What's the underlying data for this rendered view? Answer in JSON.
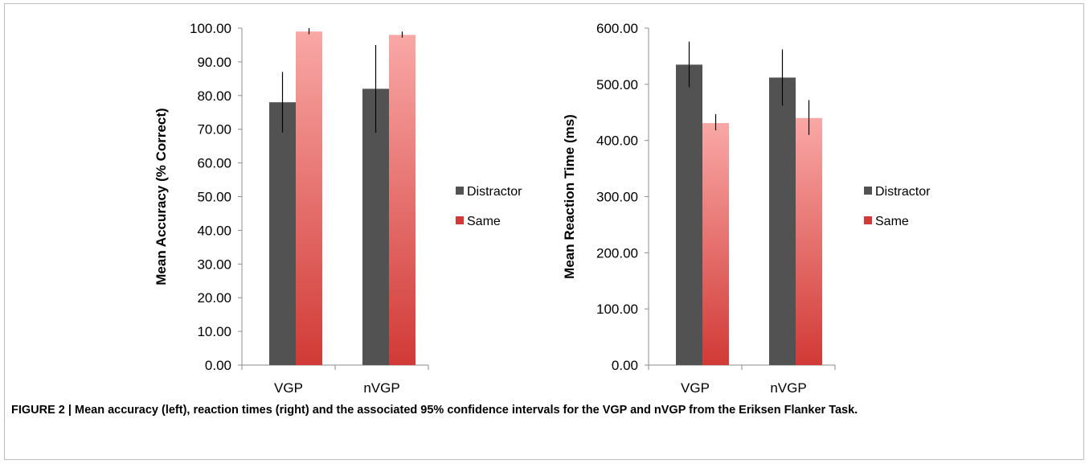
{
  "colors": {
    "distractor": "#525252",
    "same_top": "#f9a8a6",
    "same_bottom": "#d13a36",
    "error_bar": "#000000",
    "axis": "#8c8c8c"
  },
  "chart_data": [
    {
      "type": "bar",
      "categories": [
        "VGP",
        "nVGP"
      ],
      "ylabel": "Mean Accuracy (% Correct)",
      "ylim": [
        0,
        100
      ],
      "yticks": [
        "0.00",
        "10.00",
        "20.00",
        "30.00",
        "40.00",
        "50.00",
        "60.00",
        "70.00",
        "80.00",
        "90.00",
        "100.00"
      ],
      "legend_position": "right",
      "series": [
        {
          "name": "Distractor",
          "values": [
            78,
            82
          ],
          "error_low": [
            69,
            69
          ],
          "error_high": [
            87,
            95
          ]
        },
        {
          "name": "Same",
          "values": [
            99,
            98
          ],
          "error_low": [
            98.2,
            97.2
          ],
          "error_high": [
            100,
            99
          ]
        }
      ]
    },
    {
      "type": "bar",
      "categories": [
        "VGP",
        "nVGP"
      ],
      "ylabel": "Mean Reaction Time (ms)",
      "ylim": [
        0,
        600
      ],
      "yticks": [
        "0.00",
        "100.00",
        "200.00",
        "300.00",
        "400.00",
        "500.00",
        "600.00"
      ],
      "legend_position": "right",
      "series": [
        {
          "name": "Distractor",
          "values": [
            535,
            512
          ],
          "error_low": [
            495,
            462
          ],
          "error_high": [
            576,
            562
          ]
        },
        {
          "name": "Same",
          "values": [
            431,
            440
          ],
          "error_low": [
            418,
            410
          ],
          "error_high": [
            447,
            472
          ]
        }
      ]
    }
  ],
  "caption": "FIGURE 2 | Mean accuracy (left), reaction times (right) and the associated 95% confidence intervals for the VGP and nVGP from the Eriksen Flanker Task."
}
